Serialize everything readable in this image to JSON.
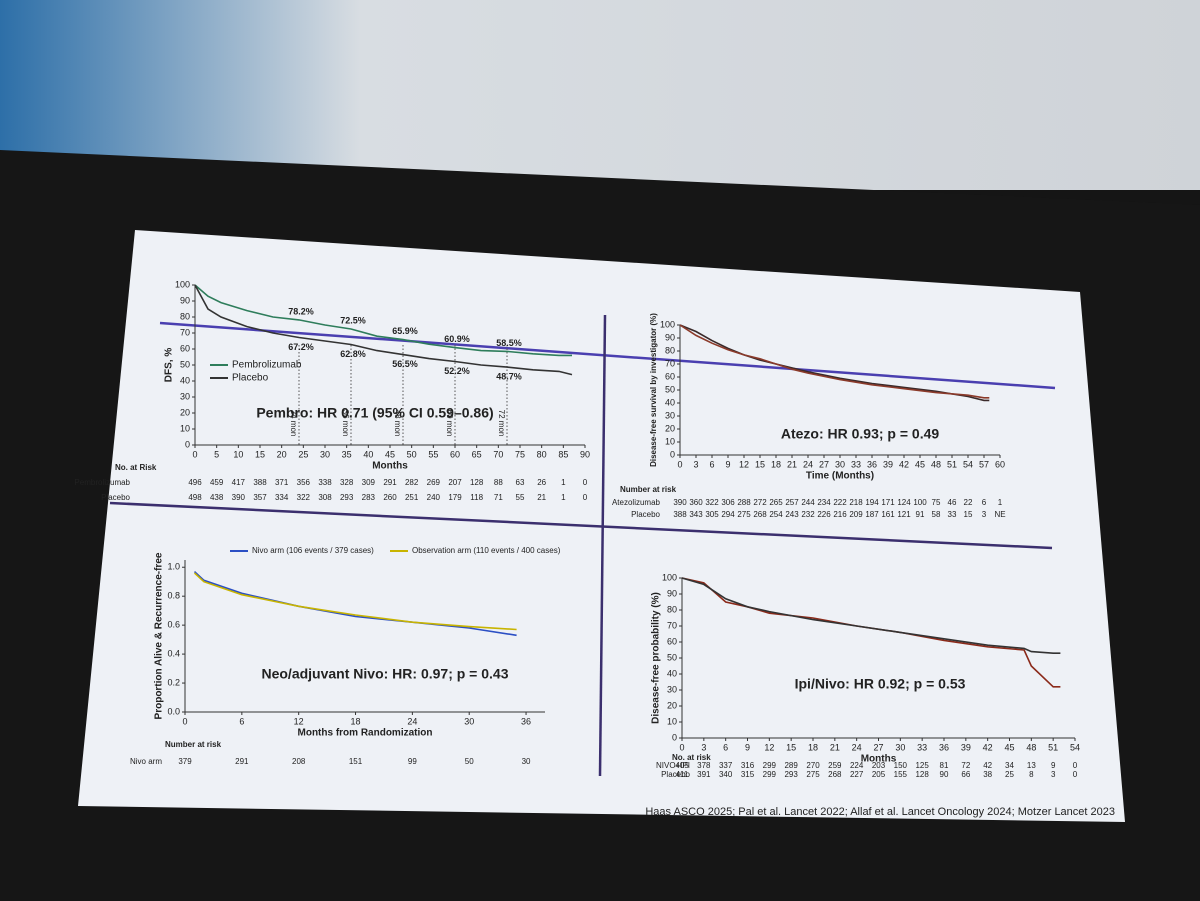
{
  "chart_data": [
    {
      "type": "line",
      "title": "Pembro: HR 0.71 (95% CI 0.59–0.86)",
      "x_label": "Months",
      "y_label": "DFS, %",
      "x": [
        0,
        3,
        6,
        12,
        18,
        24,
        30,
        36,
        42,
        48,
        54,
        60,
        66,
        72,
        78,
        84,
        87
      ],
      "series": [
        {
          "name": "Pembrolizumab",
          "color": "#2e7d5b",
          "values": [
            100,
            93,
            89,
            84,
            80,
            78.2,
            75,
            72.5,
            68,
            65.9,
            63,
            60.9,
            59,
            58.5,
            57,
            56,
            56
          ],
          "value_labels": [
            null,
            null,
            null,
            null,
            null,
            "78.2%",
            null,
            "72.5%",
            null,
            "65.9%",
            null,
            "60.9%",
            null,
            "58.5%",
            null,
            null,
            null
          ]
        },
        {
          "name": "Placebo",
          "color": "#333333",
          "values": [
            100,
            85,
            80,
            74,
            70,
            67.2,
            65,
            62.8,
            59,
            56.5,
            54,
            52.2,
            50,
            48.7,
            47,
            46,
            44
          ],
          "value_labels": [
            null,
            null,
            null,
            null,
            null,
            "67.2%",
            null,
            "62.8%",
            null,
            "56.5%",
            null,
            "52.2%",
            null,
            "48.7%",
            null,
            null,
            null
          ]
        }
      ],
      "x_markers": [
        {
          "value": 24,
          "label": "24 mon"
        },
        {
          "value": 36,
          "label": "36 mon"
        },
        {
          "value": 48,
          "label": "48 mon"
        },
        {
          "value": 60,
          "label": "60 mon"
        },
        {
          "value": 72,
          "label": "72 mon"
        }
      ],
      "xlim": [
        0,
        90
      ],
      "xticks": [
        0,
        5,
        10,
        15,
        20,
        25,
        30,
        35,
        40,
        45,
        50,
        55,
        60,
        65,
        70,
        75,
        80,
        85,
        90
      ],
      "ylim": [
        0,
        100
      ],
      "yticks": [
        0,
        10,
        20,
        30,
        40,
        50,
        60,
        70,
        80,
        90,
        100
      ],
      "at_risk": {
        "title": "No. at Risk",
        "rows": [
          {
            "label": "Pembrolizumab",
            "counts": [
              496,
              459,
              417,
              388,
              371,
              356,
              338,
              328,
              309,
              291,
              282,
              269,
              207,
              128,
              88,
              63,
              26,
              1,
              0
            ]
          },
          {
            "label": "Placebo",
            "counts": [
              498,
              438,
              390,
              357,
              334,
              322,
              308,
              293,
              283,
              260,
              251,
              240,
              179,
              118,
              71,
              55,
              21,
              1,
              0
            ]
          }
        ]
      }
    },
    {
      "type": "line",
      "title": "Atezo: HR 0.93; p = 0.49",
      "x_label": "Time (Months)",
      "y_label": "Disease-free survival by investigator (%)",
      "x": [
        0,
        3,
        6,
        9,
        12,
        15,
        18,
        21,
        24,
        30,
        36,
        42,
        48,
        54,
        57,
        58
      ],
      "series": [
        {
          "color": "#3a2a2a",
          "values": [
            100,
            95,
            88,
            82,
            77,
            73,
            70,
            67,
            64,
            59,
            55,
            52,
            49,
            45,
            42,
            42
          ]
        },
        {
          "color": "#8b3a2a",
          "values": [
            100,
            92,
            86,
            81,
            77,
            74,
            70,
            66,
            63,
            58,
            54,
            51,
            48,
            46,
            44,
            44
          ]
        }
      ],
      "xlim": [
        0,
        60
      ],
      "xticks": [
        0,
        3,
        6,
        9,
        12,
        15,
        18,
        21,
        24,
        27,
        30,
        33,
        36,
        39,
        42,
        45,
        48,
        51,
        54,
        57,
        60
      ],
      "ylim": [
        0,
        100
      ],
      "yticks": [
        0,
        10,
        20,
        30,
        40,
        50,
        60,
        70,
        80,
        90,
        100
      ],
      "at_risk": {
        "title": "Number at risk",
        "rows": [
          {
            "label": "Atezolizumab",
            "counts": [
              390,
              360,
              322,
              306,
              288,
              272,
              265,
              257,
              244,
              234,
              222,
              218,
              194,
              171,
              124,
              100,
              75,
              46,
              22,
              6,
              1
            ]
          },
          {
            "label": "Placebo",
            "counts": [
              388,
              343,
              305,
              294,
              275,
              268,
              254,
              243,
              232,
              226,
              216,
              209,
              187,
              161,
              121,
              91,
              58,
              33,
              15,
              3,
              "NE"
            ]
          }
        ]
      }
    },
    {
      "type": "line",
      "title": "Neo/adjuvant Nivo: HR: 0.97; p = 0.43",
      "x_label": "Months from Randomization",
      "y_label": "Proportion Alive & Recurrence-free",
      "x": [
        1,
        2,
        6,
        12,
        18,
        24,
        30,
        35
      ],
      "series": [
        {
          "name": "Nivo arm (106 events / 379 cases)",
          "color": "#2b4fc4",
          "values": [
            0.97,
            0.91,
            0.82,
            0.73,
            0.66,
            0.62,
            0.58,
            0.53
          ]
        },
        {
          "name": "Observation arm (110 events / 400 cases)",
          "color": "#c8b400",
          "values": [
            0.96,
            0.9,
            0.81,
            0.73,
            0.67,
            0.62,
            0.59,
            0.57
          ]
        }
      ],
      "xlim": [
        0,
        38
      ],
      "xticks": [
        0,
        6,
        12,
        18,
        24,
        30,
        36
      ],
      "ylim": [
        0,
        1.05
      ],
      "yticks": [
        {
          "value": 0,
          "label": "0.0"
        },
        0.2,
        0.4,
        0.6,
        0.8,
        {
          "value": 1,
          "label": "1.0"
        }
      ],
      "at_risk": {
        "title": "Number at risk",
        "rows": [
          {
            "label": "Nivo arm",
            "counts": [
              379,
              291,
              208,
              151,
              99,
              50,
              30
            ]
          }
        ]
      }
    },
    {
      "type": "line",
      "title": "Ipi/Nivo: HR 0.92; p = 0.53",
      "x_label": "Months",
      "y_label": "Disease-free probability (%)",
      "x": [
        0,
        3,
        6,
        9,
        12,
        18,
        24,
        30,
        36,
        42,
        47,
        48,
        51,
        52
      ],
      "series": [
        {
          "color": "#8b2a1a",
          "values": [
            100,
            97,
            85,
            82,
            78,
            75,
            70,
            66,
            61,
            57,
            55,
            45,
            32,
            32
          ]
        },
        {
          "color": "#333333",
          "values": [
            100,
            96,
            87,
            82,
            79,
            74,
            70,
            66,
            62,
            58,
            56,
            54,
            53,
            53
          ]
        }
      ],
      "xlim": [
        0,
        54
      ],
      "xticks": [
        0,
        3,
        6,
        9,
        12,
        15,
        18,
        21,
        24,
        27,
        30,
        33,
        36,
        39,
        42,
        45,
        48,
        51,
        54
      ],
      "ylim": [
        0,
        100
      ],
      "yticks": [
        0,
        10,
        20,
        30,
        40,
        50,
        60,
        70,
        80,
        90,
        100
      ],
      "at_risk": {
        "title": "No. at risk",
        "rows": [
          {
            "label": "NIVO+IPI",
            "counts": [
              405,
              378,
              337,
              316,
              299,
              289,
              270,
              259,
              224,
              203,
              150,
              125,
              81,
              72,
              42,
              34,
              13,
              9,
              0
            ]
          },
          {
            "label": "Placebo",
            "counts": [
              411,
              391,
              340,
              315,
              299,
              293,
              275,
              268,
              227,
              205,
              155,
              128,
              90,
              66,
              38,
              25,
              8,
              3,
              0
            ]
          }
        ]
      }
    }
  ],
  "footer": "Haas ASCO 2025; Pal et al. Lancet 2022; Allaf et al. Lancet Oncology 2024; Motzer Lancet 2023"
}
